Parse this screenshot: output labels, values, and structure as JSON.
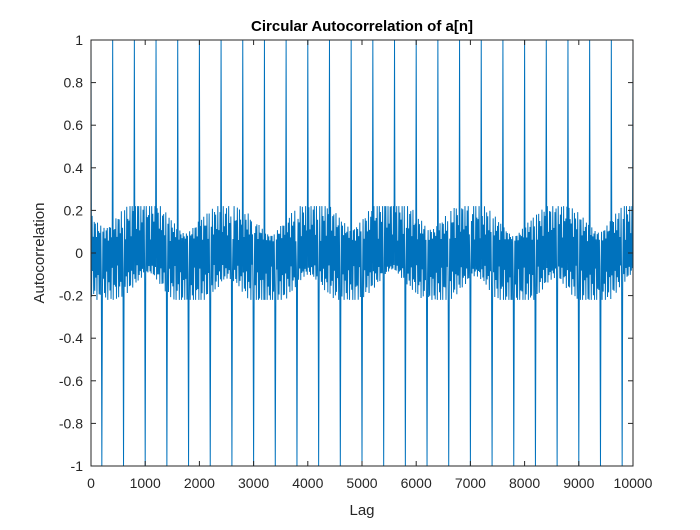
{
  "chart_data": {
    "type": "line",
    "title": "Circular Autocorrelation of a[n]",
    "xlabel": "Lag",
    "ylabel": "Autocorrelation",
    "xlim": [
      0,
      10000
    ],
    "ylim": [
      -1,
      1
    ],
    "xticks": [
      0,
      1000,
      2000,
      3000,
      4000,
      5000,
      6000,
      7000,
      8000,
      9000,
      10000
    ],
    "yticks": [
      -1,
      -0.8,
      -0.6,
      -0.4,
      -0.2,
      0,
      0.2,
      0.4,
      0.6,
      0.8,
      1
    ],
    "xtick_labels": [
      "0",
      "1000",
      "2000",
      "3000",
      "4000",
      "5000",
      "6000",
      "7000",
      "8000",
      "9000",
      "10000"
    ],
    "ytick_labels": [
      "-1",
      "-0.8",
      "-0.6",
      "-0.4",
      "-0.2",
      "0",
      "0.2",
      "0.4",
      "0.6",
      "0.8",
      "1"
    ],
    "grid": false,
    "line_color": "#0072BD",
    "series": [
      {
        "description_period_lags": 400,
        "positive_peak_lags": [
          0,
          400,
          800,
          1200,
          1600,
          2000,
          2400,
          2800,
          3200,
          3600,
          4000,
          4400,
          4800,
          5200,
          5600,
          6000,
          6400,
          6800,
          7200,
          7600,
          8000,
          8400,
          8800,
          9200,
          9600,
          10000
        ],
        "positive_peak_value": 1,
        "negative_peak_lags": [
          200,
          600,
          1000,
          1400,
          1800,
          2200,
          2600,
          3000,
          3400,
          3800,
          4200,
          4600,
          5000,
          5400,
          5800,
          6200,
          6600,
          7000,
          7400,
          7800,
          8200,
          8600,
          9000,
          9400,
          9800
        ],
        "negative_peak_value": -1,
        "sidelobe_range": [
          -0.22,
          0.22
        ]
      }
    ]
  }
}
